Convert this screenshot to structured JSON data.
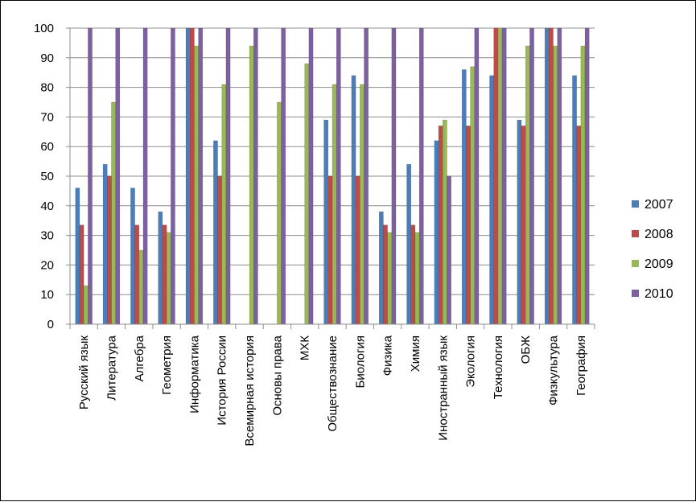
{
  "chart_data": {
    "type": "bar",
    "categories": [
      "Русский язык",
      "Литература",
      "Алгебра",
      "Геометрия",
      "Информатика",
      "История России",
      "Всемирная история",
      "Основы права",
      "МХК",
      "Обществознание",
      "Биология",
      "Физика",
      "Химия",
      "Иностранный язык",
      "Экология",
      "Технология",
      "ОБЖ",
      "Физкультура",
      "География"
    ],
    "series": [
      {
        "name": "2007",
        "color": "#4a7ebb",
        "values": [
          46,
          54,
          46,
          38,
          100,
          62,
          0,
          0,
          0,
          69,
          84,
          38,
          54,
          62,
          86,
          84,
          69,
          100,
          84
        ]
      },
      {
        "name": "2008",
        "color": "#be4b48",
        "values": [
          33.5,
          50,
          33.5,
          33.5,
          100,
          50,
          0,
          0,
          0,
          50,
          50,
          33.5,
          33.5,
          67,
          67,
          100,
          67,
          100,
          67
        ]
      },
      {
        "name": "2009",
        "color": "#98b954",
        "values": [
          13,
          75,
          25,
          31,
          94,
          81,
          94,
          75,
          88,
          81,
          81,
          31,
          31,
          69,
          87,
          100,
          94,
          94,
          94
        ]
      },
      {
        "name": "2010",
        "color": "#7d60a0",
        "values": [
          100,
          100,
          100,
          100,
          100,
          100,
          100,
          100,
          100,
          100,
          100,
          100,
          100,
          50,
          100,
          100,
          100,
          100,
          100
        ]
      }
    ],
    "ylim": [
      0,
      100
    ],
    "yticks": [
      "0",
      "10",
      "20",
      "30",
      "40",
      "50",
      "60",
      "70",
      "80",
      "90",
      "100"
    ],
    "grid": true,
    "legend": "right"
  }
}
